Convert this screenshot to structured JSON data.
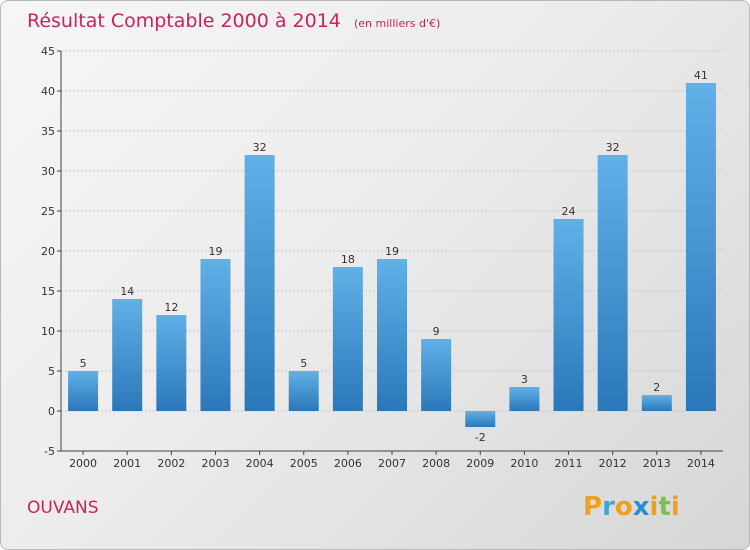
{
  "chart_data": {
    "type": "bar",
    "title": "Résultat Comptable 2000 à 2014",
    "subtitle": "(en milliers d'€)",
    "categories": [
      "2000",
      "2001",
      "2002",
      "2003",
      "2004",
      "2005",
      "2006",
      "2007",
      "2008",
      "2009",
      "2010",
      "2011",
      "2012",
      "2013",
      "2014"
    ],
    "values": [
      5,
      14,
      12,
      19,
      32,
      5,
      18,
      19,
      9,
      -2,
      3,
      24,
      32,
      2,
      41
    ],
    "ylim": [
      -5,
      45
    ],
    "yticks": [
      -5,
      0,
      5,
      10,
      15,
      20,
      25,
      30,
      35,
      40,
      45
    ],
    "grid": true,
    "xlabel": "",
    "ylabel": ""
  },
  "location": "OUVANS",
  "brand": {
    "letters": [
      "P",
      "r",
      "o",
      "x",
      "i",
      "t",
      "i"
    ],
    "letter_colors": [
      "#f0a020",
      "#3fa7d6",
      "#f0a020",
      "#2a8fd0",
      "#f0a020",
      "#7cc04a",
      "#f0a020"
    ]
  },
  "colors": {
    "bar_top": "#62b0e8",
    "bar_bottom": "#2a78b8",
    "title": "#c8245a"
  }
}
